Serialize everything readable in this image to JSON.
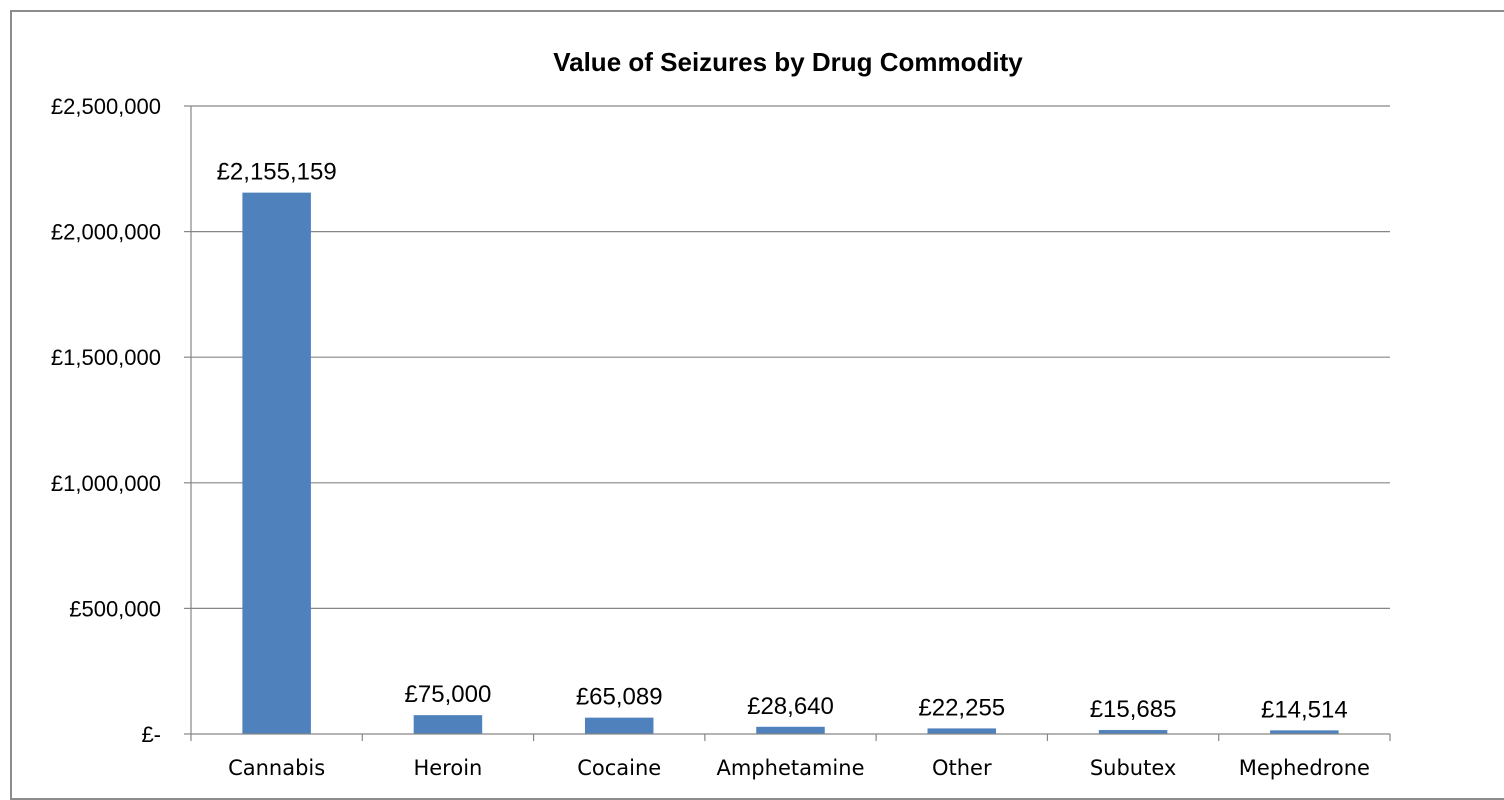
{
  "chart_data": {
    "type": "bar",
    "title": "Value of Seizures by Drug Commodity",
    "xlabel": "",
    "ylabel": "",
    "categories": [
      "Cannabis",
      "Heroin",
      "Cocaine",
      "Amphetamine",
      "Other",
      "Subutex",
      "Mephedrone"
    ],
    "values": [
      2155159,
      75000,
      65089,
      28640,
      22255,
      15685,
      14514
    ],
    "data_labels": [
      "£2,155,159",
      "£75,000",
      "£65,089",
      "£28,640",
      "£22,255",
      "£15,685",
      "£14,514"
    ],
    "ylim": [
      0,
      2500000
    ],
    "yticks": [
      0,
      500000,
      1000000,
      1500000,
      2000000,
      2500000
    ],
    "ytick_labels": [
      "£-",
      "£500,000",
      "£1,000,000",
      "£1,500,000",
      "£2,000,000",
      "£2,500,000"
    ],
    "grid": true,
    "legend": "none",
    "bar_color": "#4f81bd",
    "grid_color": "#868686"
  }
}
